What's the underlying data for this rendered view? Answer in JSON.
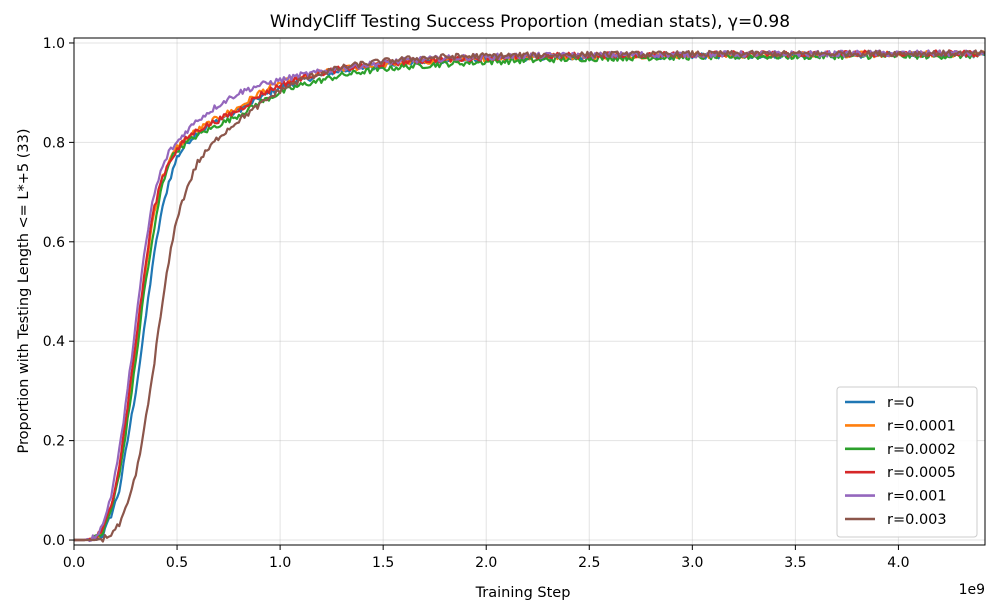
{
  "chart_data": {
    "type": "line",
    "title": "WindyCliff Testing Success Proportion (median stats), γ=0.98",
    "xlabel": "Training Step",
    "ylabel": "Proportion with Testing Length <= L*+5 (33)",
    "x_offset_label": "1e9",
    "xlim": [
      0,
      4.42
    ],
    "ylim": [
      -0.01,
      1.01
    ],
    "x_unit": 1000000000,
    "grid": true,
    "legend_position": "bottom-right",
    "x_ticks": [
      0.0,
      0.5,
      1.0,
      1.5,
      2.0,
      2.5,
      3.0,
      3.5,
      4.0
    ],
    "x_tick_labels": [
      "0.0",
      "0.5",
      "1.0",
      "1.5",
      "2.0",
      "2.5",
      "3.0",
      "3.5",
      "4.0"
    ],
    "y_ticks": [
      0.0,
      0.2,
      0.4,
      0.6,
      0.8,
      1.0
    ],
    "y_tick_labels": [
      "0.0",
      "0.2",
      "0.4",
      "0.6",
      "0.8",
      "1.0"
    ],
    "series": [
      {
        "name": "r=0",
        "color": "#1f77b4",
        "x": [
          0,
          0.05,
          0.1,
          0.14,
          0.18,
          0.22,
          0.26,
          0.3,
          0.34,
          0.38,
          0.42,
          0.46,
          0.5,
          0.55,
          0.6,
          0.7,
          0.8,
          0.9,
          1.0,
          1.1,
          1.2,
          1.3,
          1.4,
          1.5,
          1.6,
          1.7,
          1.8,
          1.9,
          2.0,
          2.2,
          2.4,
          2.6,
          2.8,
          3.0,
          3.3,
          3.6,
          3.9,
          4.2,
          4.42
        ],
        "y": [
          0,
          0,
          0.002,
          0.01,
          0.05,
          0.1,
          0.2,
          0.3,
          0.42,
          0.55,
          0.65,
          0.72,
          0.77,
          0.8,
          0.82,
          0.845,
          0.865,
          0.89,
          0.91,
          0.925,
          0.935,
          0.945,
          0.95,
          0.955,
          0.96,
          0.962,
          0.965,
          0.967,
          0.968,
          0.97,
          0.972,
          0.972,
          0.973,
          0.974,
          0.975,
          0.976,
          0.976,
          0.977,
          0.977
        ]
      },
      {
        "name": "r=0.0001",
        "color": "#ff7f0e",
        "x": [
          0,
          0.05,
          0.1,
          0.14,
          0.18,
          0.22,
          0.26,
          0.3,
          0.34,
          0.38,
          0.42,
          0.46,
          0.5,
          0.55,
          0.6,
          0.7,
          0.8,
          0.9,
          1.0,
          1.1,
          1.2,
          1.3,
          1.4,
          1.5,
          1.6,
          1.7,
          1.8,
          1.9,
          2.0,
          2.2,
          2.4,
          2.6,
          2.8,
          3.0,
          3.3,
          3.6,
          3.9,
          4.2,
          4.42
        ],
        "y": [
          0,
          0,
          0.005,
          0.02,
          0.07,
          0.14,
          0.26,
          0.38,
          0.52,
          0.64,
          0.72,
          0.76,
          0.79,
          0.81,
          0.825,
          0.85,
          0.87,
          0.9,
          0.92,
          0.93,
          0.94,
          0.948,
          0.952,
          0.956,
          0.96,
          0.963,
          0.965,
          0.967,
          0.969,
          0.971,
          0.973,
          0.974,
          0.975,
          0.975,
          0.976,
          0.977,
          0.977,
          0.978,
          0.978
        ]
      },
      {
        "name": "r=0.0002",
        "color": "#2ca02c",
        "x": [
          0,
          0.05,
          0.1,
          0.14,
          0.18,
          0.22,
          0.26,
          0.3,
          0.34,
          0.38,
          0.42,
          0.46,
          0.5,
          0.55,
          0.6,
          0.7,
          0.8,
          0.9,
          1.0,
          1.1,
          1.2,
          1.3,
          1.4,
          1.5,
          1.6,
          1.7,
          1.8,
          1.9,
          2.0,
          2.2,
          2.4,
          2.6,
          2.8,
          3.0,
          3.3,
          3.6,
          3.9,
          4.2,
          4.42
        ],
        "y": [
          0,
          0,
          0.003,
          0.015,
          0.06,
          0.13,
          0.24,
          0.36,
          0.5,
          0.6,
          0.7,
          0.76,
          0.785,
          0.8,
          0.815,
          0.835,
          0.855,
          0.88,
          0.9,
          0.915,
          0.925,
          0.935,
          0.942,
          0.948,
          0.952,
          0.955,
          0.958,
          0.96,
          0.962,
          0.965,
          0.968,
          0.97,
          0.971,
          0.972,
          0.973,
          0.973,
          0.974,
          0.974,
          0.975
        ]
      },
      {
        "name": "r=0.0005",
        "color": "#d62728",
        "x": [
          0,
          0.05,
          0.1,
          0.14,
          0.18,
          0.22,
          0.26,
          0.3,
          0.34,
          0.38,
          0.42,
          0.46,
          0.5,
          0.55,
          0.6,
          0.7,
          0.8,
          0.9,
          1.0,
          1.1,
          1.2,
          1.3,
          1.4,
          1.5,
          1.6,
          1.7,
          1.8,
          1.9,
          2.0,
          2.2,
          2.4,
          2.6,
          2.8,
          3.0,
          3.3,
          3.6,
          3.9,
          4.2,
          4.42
        ],
        "y": [
          0,
          0,
          0.004,
          0.02,
          0.07,
          0.15,
          0.27,
          0.4,
          0.53,
          0.65,
          0.72,
          0.76,
          0.785,
          0.81,
          0.825,
          0.845,
          0.865,
          0.895,
          0.915,
          0.93,
          0.94,
          0.948,
          0.953,
          0.958,
          0.962,
          0.965,
          0.967,
          0.969,
          0.971,
          0.973,
          0.975,
          0.976,
          0.977,
          0.977,
          0.978,
          0.978,
          0.979,
          0.979,
          0.979
        ]
      },
      {
        "name": "r=0.001",
        "color": "#9467bd",
        "x": [
          0,
          0.05,
          0.1,
          0.14,
          0.18,
          0.22,
          0.26,
          0.3,
          0.34,
          0.38,
          0.42,
          0.46,
          0.5,
          0.55,
          0.6,
          0.7,
          0.8,
          0.9,
          1.0,
          1.1,
          1.2,
          1.3,
          1.4,
          1.5,
          1.6,
          1.7,
          1.8,
          1.9,
          2.0,
          2.2,
          2.4,
          2.6,
          2.8,
          3.0,
          3.3,
          3.6,
          3.9,
          4.2,
          4.42
        ],
        "y": [
          0,
          0,
          0.006,
          0.03,
          0.09,
          0.18,
          0.3,
          0.44,
          0.57,
          0.68,
          0.74,
          0.78,
          0.8,
          0.825,
          0.845,
          0.875,
          0.9,
          0.915,
          0.925,
          0.935,
          0.942,
          0.95,
          0.955,
          0.96,
          0.964,
          0.967,
          0.969,
          0.971,
          0.972,
          0.974,
          0.975,
          0.976,
          0.977,
          0.977,
          0.978,
          0.978,
          0.979,
          0.979,
          0.979
        ]
      },
      {
        "name": "r=0.003",
        "color": "#8c564b",
        "x": [
          0,
          0.05,
          0.1,
          0.14,
          0.18,
          0.22,
          0.26,
          0.3,
          0.34,
          0.38,
          0.42,
          0.46,
          0.5,
          0.55,
          0.6,
          0.7,
          0.8,
          0.9,
          1.0,
          1.1,
          1.2,
          1.3,
          1.4,
          1.5,
          1.6,
          1.7,
          1.8,
          1.9,
          2.0,
          2.2,
          2.4,
          2.6,
          2.8,
          3.0,
          3.3,
          3.6,
          3.9,
          4.2,
          4.42
        ],
        "y": [
          0,
          0,
          0,
          0.003,
          0.012,
          0.03,
          0.07,
          0.13,
          0.22,
          0.33,
          0.45,
          0.56,
          0.65,
          0.71,
          0.76,
          0.81,
          0.845,
          0.875,
          0.905,
          0.925,
          0.94,
          0.95,
          0.958,
          0.963,
          0.967,
          0.97,
          0.972,
          0.973,
          0.974,
          0.975,
          0.976,
          0.977,
          0.977,
          0.978,
          0.978,
          0.978,
          0.979,
          0.979,
          0.979
        ]
      }
    ]
  }
}
